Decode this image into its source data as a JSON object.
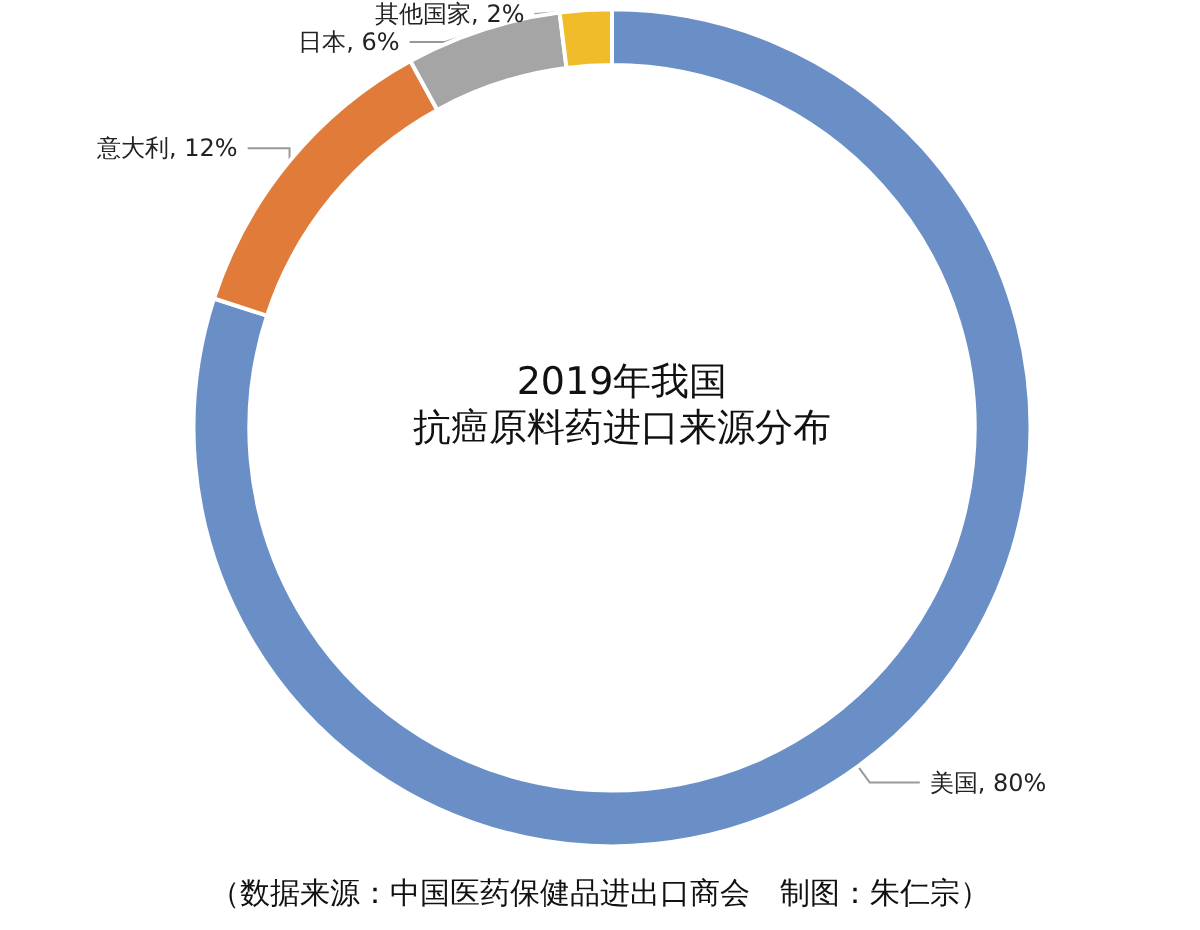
{
  "chart_data": {
    "type": "donut",
    "title": "2019年我国",
    "subtitle": "抗癌原料药进口来源分布",
    "categories": [
      "美国",
      "意大利",
      "日本",
      "其他国家"
    ],
    "values": [
      80,
      12,
      6,
      2
    ],
    "value_labels": [
      "80%",
      "12%",
      "6%",
      "2%"
    ],
    "colors": [
      "#6a8fc6",
      "#e07b3a",
      "#a5a5a5",
      "#f0bc2a"
    ],
    "annotations": [
      "（数据来源：中国医药保健品进出口商会　制图：朱仁宗）"
    ],
    "legend": false
  }
}
